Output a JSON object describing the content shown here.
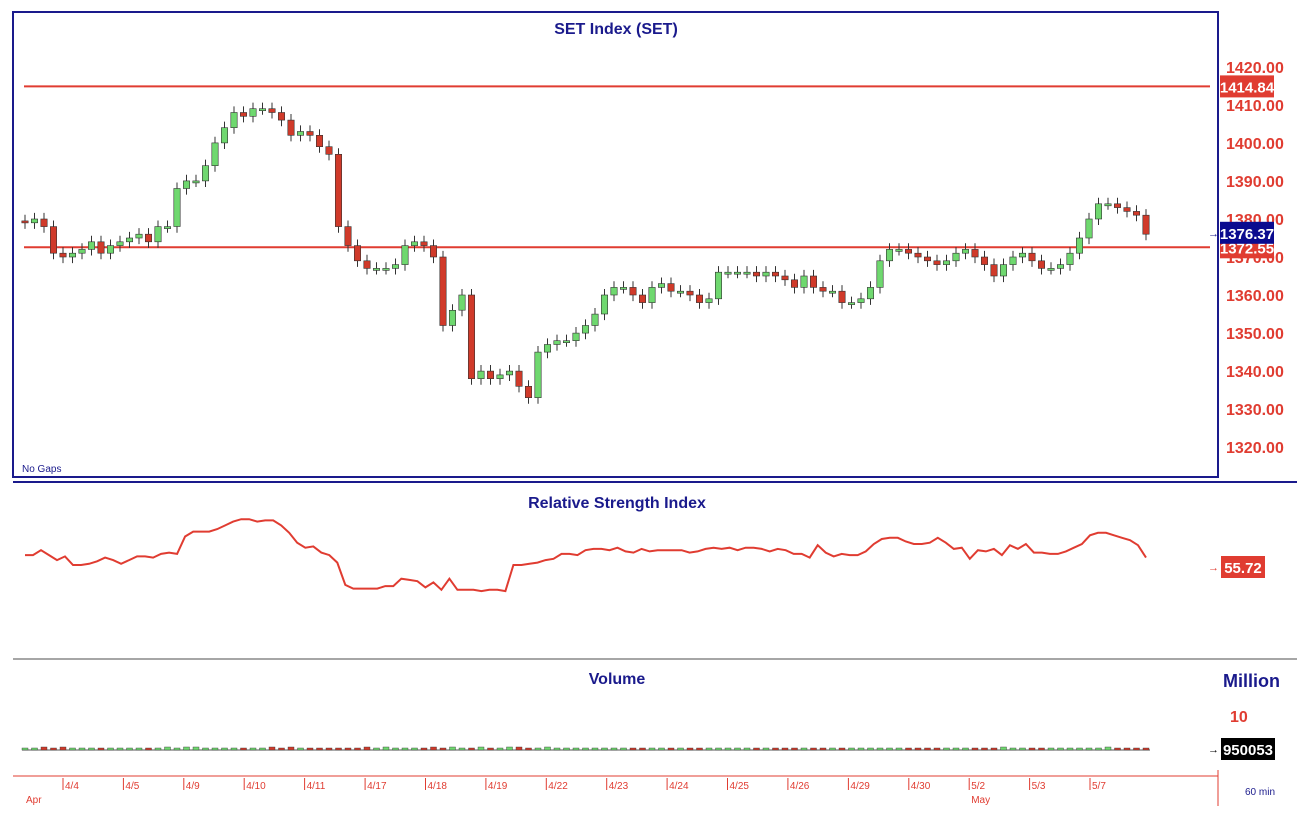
{
  "chart_data": [
    {
      "type": "candlestick",
      "title": "SET Index (SET)",
      "note": "No Gaps",
      "y_ticks": [
        1420,
        1410,
        1400,
        1390,
        1380,
        1370,
        1360,
        1350,
        1340,
        1330,
        1320
      ],
      "y_tick_labels": [
        "1420.00",
        "1410.00",
        "1400.00",
        "1390.00",
        "1380.00",
        "1370.00",
        "1360.00",
        "1350.00",
        "1340.00",
        "1330.00",
        "1320.00"
      ],
      "ylim": [
        1314,
        1426
      ],
      "reference_lines": [
        {
          "value": 1414.84,
          "label": "1414.84",
          "color": "#e03c31"
        },
        {
          "value": 1372.55,
          "label": "1372.55",
          "color": "#e03c31"
        }
      ],
      "last_value": {
        "value": 1376.37,
        "label": "1376.37",
        "color": "#0b0b8f"
      },
      "up_color": "#6fd86f",
      "down_color": "#d03a2a",
      "candles_close": [
        1379,
        1380,
        1378,
        1371,
        1370,
        1371,
        1372,
        1374,
        1371,
        1373,
        1374,
        1375,
        1376,
        1374,
        1378,
        1378,
        1388,
        1390,
        1390,
        1394,
        1400,
        1404,
        1408,
        1407,
        1409,
        1409,
        1408,
        1406,
        1402,
        1403,
        1402,
        1399,
        1397,
        1378,
        1373,
        1369,
        1367,
        1367,
        1367,
        1368,
        1373,
        1374,
        1373,
        1370,
        1352,
        1356,
        1360,
        1338,
        1340,
        1338,
        1339,
        1340,
        1336,
        1333,
        1345,
        1347,
        1348,
        1348,
        1350,
        1352,
        1355,
        1360,
        1362,
        1362,
        1360,
        1358,
        1362,
        1363,
        1361,
        1361,
        1360,
        1358,
        1359,
        1366,
        1366,
        1366,
        1366,
        1365,
        1366,
        1365,
        1364,
        1362,
        1365,
        1362,
        1361,
        1361,
        1358,
        1358,
        1359,
        1362,
        1369,
        1372,
        1372,
        1371,
        1370,
        1369,
        1368,
        1369,
        1371,
        1372,
        1370,
        1368,
        1365,
        1368,
        1370,
        1371,
        1369,
        1367,
        1367,
        1368,
        1371,
        1375,
        1380,
        1384,
        1384,
        1383,
        1382,
        1381,
        1376
      ]
    },
    {
      "type": "line",
      "title": "Relative Strength Index",
      "last_value": {
        "value": 55.72,
        "label": "55.72",
        "color": "#e03c31"
      },
      "ylim": [
        0,
        100
      ],
      "values": [
        62,
        62,
        66,
        62,
        58,
        61,
        54,
        54,
        55,
        57,
        60,
        58,
        55,
        58,
        61,
        61,
        60,
        63,
        64,
        63,
        77,
        81,
        81,
        81,
        83,
        86,
        89,
        91,
        91,
        89,
        90,
        90,
        86,
        80,
        72,
        68,
        69,
        64,
        62,
        56,
        38,
        35,
        35,
        35,
        35,
        37,
        37,
        43,
        42,
        41,
        36,
        40,
        34,
        43,
        34,
        34,
        34,
        33,
        34,
        34,
        33,
        54,
        54,
        55,
        56,
        58,
        59,
        63,
        63,
        62,
        66,
        67,
        67,
        66,
        68,
        65,
        64,
        67,
        65,
        66,
        66,
        66,
        66,
        64,
        65,
        67,
        68,
        67,
        68,
        66,
        68,
        68,
        67,
        65,
        67,
        66,
        63,
        63,
        60,
        70,
        64,
        61,
        63,
        62,
        62,
        65,
        71,
        75,
        76,
        76,
        73,
        71,
        71,
        72,
        76,
        72,
        67,
        68,
        59,
        66,
        65,
        67,
        62,
        70,
        67,
        71,
        64,
        64,
        63,
        63,
        65,
        68,
        71,
        78,
        80,
        80,
        78,
        76,
        74,
        70,
        60
      ]
    },
    {
      "type": "bar",
      "title": "Volume",
      "unit_label": "Million",
      "y_tick_label": "10",
      "last_value": {
        "value": 950053,
        "label": "950053",
        "color": "#000000"
      },
      "values": [
        2,
        2,
        3,
        2,
        3,
        2,
        2,
        2,
        2,
        2,
        2,
        2,
        2,
        2,
        2,
        3,
        2,
        3,
        3,
        2,
        2,
        2,
        2,
        2,
        2,
        2,
        3,
        2,
        3,
        2,
        2,
        2,
        2,
        2,
        2,
        2,
        3,
        2,
        3,
        2,
        2,
        2,
        2,
        3,
        2,
        3,
        2,
        2,
        3,
        2,
        2,
        3,
        3,
        2,
        2,
        3,
        2,
        2,
        2,
        2,
        2,
        2,
        2,
        2,
        2,
        2,
        2,
        2,
        2,
        2,
        2,
        2,
        2,
        2,
        2,
        2,
        2,
        2,
        2,
        2,
        2,
        2,
        2,
        2,
        2,
        2,
        2,
        2,
        2,
        2,
        2,
        2,
        2,
        2,
        2,
        2,
        2,
        2,
        2,
        2,
        2,
        2,
        2,
        3,
        2,
        2,
        2,
        2,
        2,
        2,
        2,
        2,
        2,
        2,
        3,
        2,
        2,
        2,
        2
      ],
      "x_labels": [
        "4/4",
        "4/5",
        "4/9",
        "4/10",
        "4/11",
        "4/17",
        "4/18",
        "4/19",
        "4/22",
        "4/23",
        "4/24",
        "4/25",
        "4/26",
        "4/29",
        "4/30",
        "5/2",
        "5/3",
        "5/7"
      ],
      "month_labels": [
        {
          "label": "Apr",
          "at": "4/4"
        },
        {
          "label": "May",
          "at": "5/2"
        }
      ],
      "interval_label": "60 min"
    }
  ]
}
